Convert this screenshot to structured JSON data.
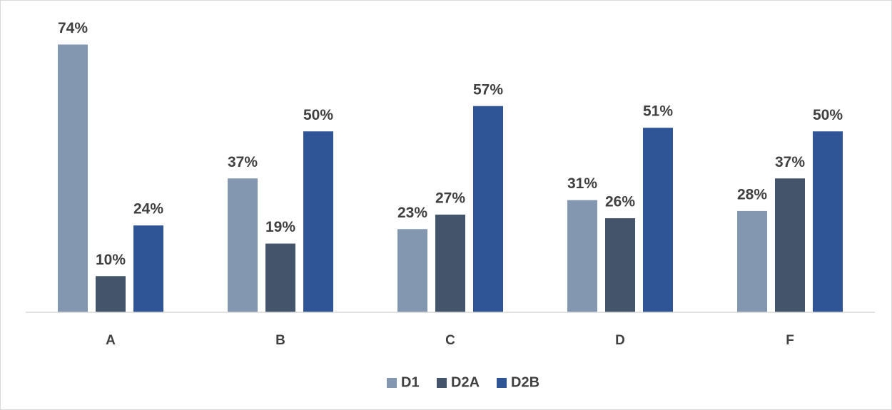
{
  "chart_data": {
    "type": "bar",
    "categories": [
      "A",
      "B",
      "C",
      "D",
      "F"
    ],
    "series": [
      {
        "name": "D1",
        "color": "#8497b0",
        "values": [
          74,
          37,
          23,
          31,
          28
        ],
        "value_labels": [
          "74%",
          "37%",
          "23%",
          "31%",
          "28%"
        ]
      },
      {
        "name": "D2A",
        "color": "#44546a",
        "values": [
          10,
          19,
          27,
          26,
          37
        ],
        "value_labels": [
          "10%",
          "19%",
          "27%",
          "26%",
          "37%"
        ]
      },
      {
        "name": "D2B",
        "color": "#2f5597",
        "values": [
          24,
          50,
          57,
          51,
          50
        ],
        "value_labels": [
          "24%",
          "50%",
          "57%",
          "51%",
          "50%"
        ]
      }
    ],
    "ylim": [
      0,
      80
    ],
    "legend": "bottom"
  }
}
